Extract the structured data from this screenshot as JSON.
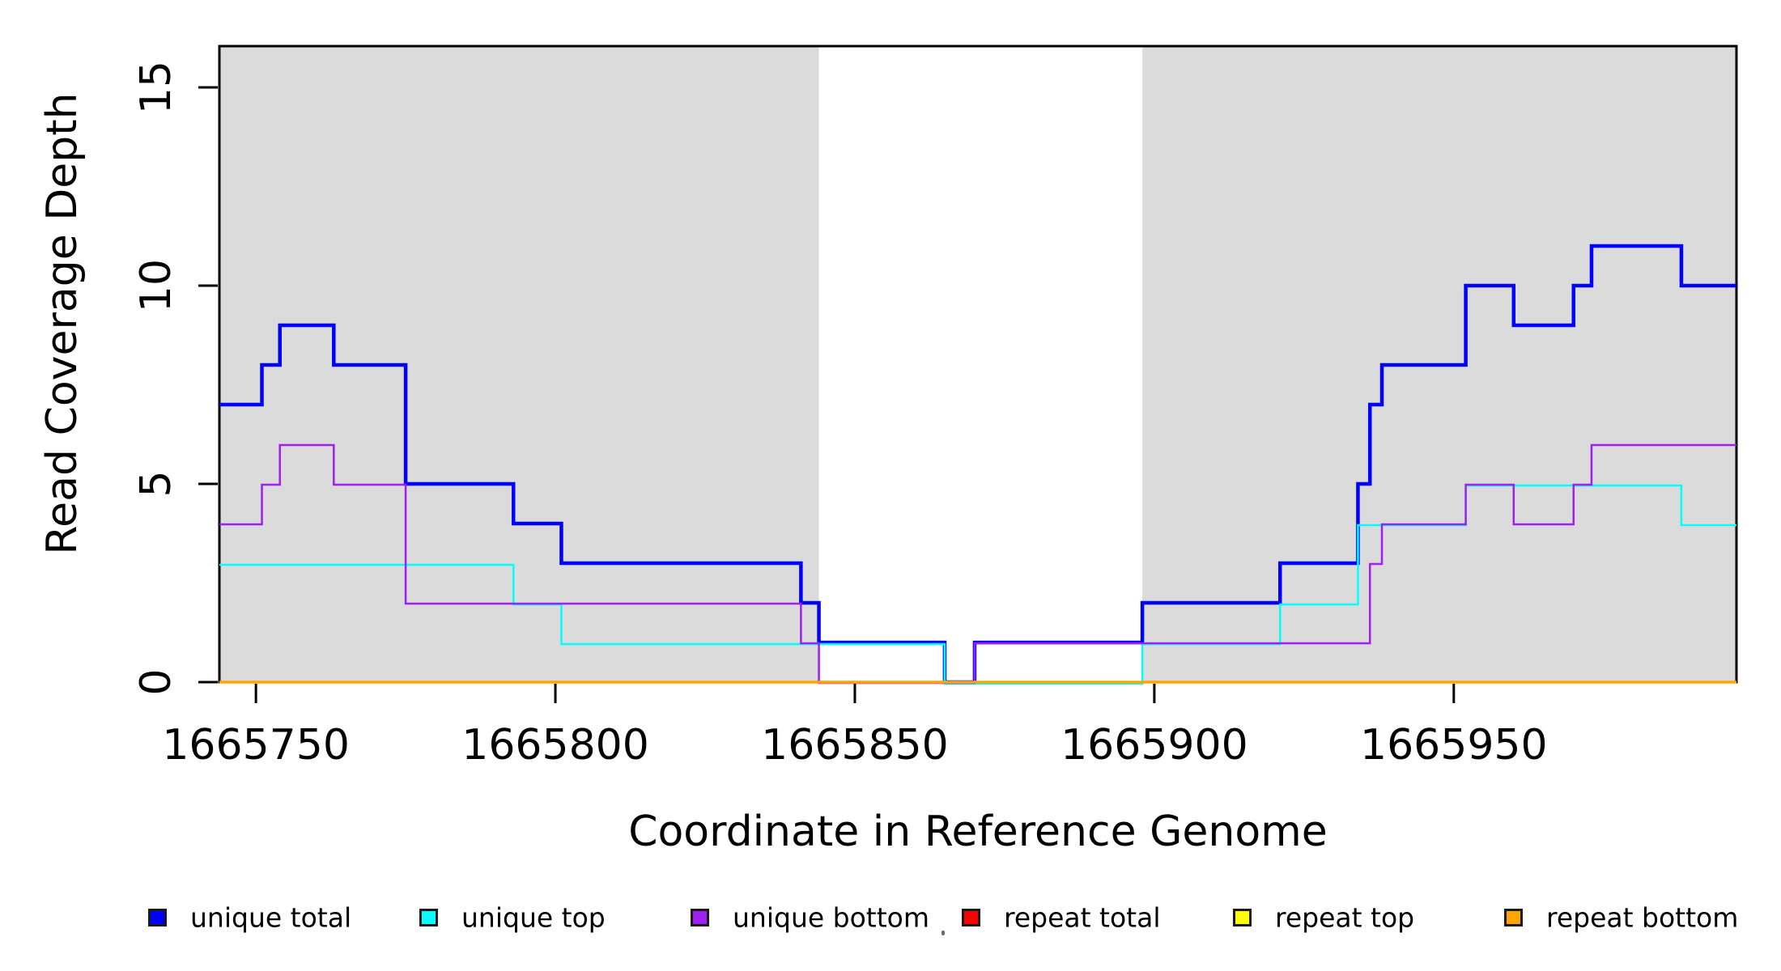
{
  "chart_data": {
    "type": "line",
    "subtype": "step",
    "title": "",
    "xlabel": "Coordinate in Reference Genome",
    "ylabel": "Read Coverage Depth",
    "x_range": [
      1665743.9,
      1665997.2
    ],
    "y_range": [
      0,
      16.04
    ],
    "grid": false,
    "x_ticks": [
      1665750,
      1665800,
      1665850,
      1665900,
      1665950
    ],
    "x_tick_labels": [
      "1665750",
      "1665800",
      "1665850",
      "1665900",
      "1665950"
    ],
    "y_ticks": [
      0,
      5,
      10,
      15
    ],
    "y_tick_labels": [
      "0",
      "5",
      "10",
      "15"
    ],
    "shaded_regions": [
      {
        "x_from": 1665743.9,
        "x_to": 1665844,
        "color": "#DBDBDB"
      },
      {
        "x_from": 1665898,
        "x_to": 1665997.2,
        "color": "#DBDBDB"
      }
    ],
    "series": [
      {
        "name": "unique total",
        "color": "#0000FF",
        "steps": [
          [
            1665743.9,
            7
          ],
          [
            1665751,
            8
          ],
          [
            1665754,
            9
          ],
          [
            1665763,
            8
          ],
          [
            1665775,
            5
          ],
          [
            1665793,
            4
          ],
          [
            1665801,
            3
          ],
          [
            1665841,
            2
          ],
          [
            1665844,
            1
          ],
          [
            1665865,
            0
          ],
          [
            1665870,
            1
          ],
          [
            1665898,
            2
          ],
          [
            1665921,
            3
          ],
          [
            1665934,
            5
          ],
          [
            1665936,
            7
          ],
          [
            1665938,
            8
          ],
          [
            1665952,
            10
          ],
          [
            1665960,
            9
          ],
          [
            1665970,
            10
          ],
          [
            1665973,
            11
          ],
          [
            1665988,
            10
          ]
        ]
      },
      {
        "name": "unique top",
        "color": "#00FFFF",
        "steps": [
          [
            1665743.9,
            3
          ],
          [
            1665793,
            2
          ],
          [
            1665801,
            1
          ],
          [
            1665865,
            0
          ],
          [
            1665898,
            1
          ],
          [
            1665921,
            2
          ],
          [
            1665934,
            4
          ],
          [
            1665952,
            5
          ],
          [
            1665988,
            4
          ]
        ]
      },
      {
        "name": "unique bottom",
        "color": "#A020F0",
        "steps": [
          [
            1665743.9,
            4
          ],
          [
            1665751,
            5
          ],
          [
            1665754,
            6
          ],
          [
            1665763,
            5
          ],
          [
            1665775,
            2
          ],
          [
            1665841,
            1
          ],
          [
            1665844,
            0
          ],
          [
            1665870,
            1
          ],
          [
            1665936,
            3
          ],
          [
            1665938,
            4
          ],
          [
            1665952,
            5
          ],
          [
            1665960,
            4
          ],
          [
            1665970,
            5
          ],
          [
            1665973,
            6
          ]
        ]
      },
      {
        "name": "repeat total",
        "color": "#FF0000",
        "steps": [
          [
            1665743.9,
            0
          ]
        ]
      },
      {
        "name": "repeat top",
        "color": "#FFFF00",
        "steps": [
          [
            1665743.9,
            0
          ]
        ]
      },
      {
        "name": "repeat bottom",
        "color": "#FFA500",
        "steps": [
          [
            1665743.9,
            0
          ]
        ]
      }
    ]
  },
  "legend": {
    "items": [
      {
        "label": "unique total",
        "color": "#0000FF"
      },
      {
        "label": "unique top",
        "color": "#00FFFF"
      },
      {
        "label": "unique bottom",
        "color": "#A020F0"
      },
      {
        "label": "repeat total",
        "color": "#FF0000"
      },
      {
        "label": "repeat top",
        "color": "#FFFF00"
      },
      {
        "label": "repeat bottom",
        "color": "#FFA500"
      }
    ]
  },
  "colors": {
    "shading": "#DBDBDB",
    "axis": "#000000",
    "background": "#FFFFFF"
  }
}
